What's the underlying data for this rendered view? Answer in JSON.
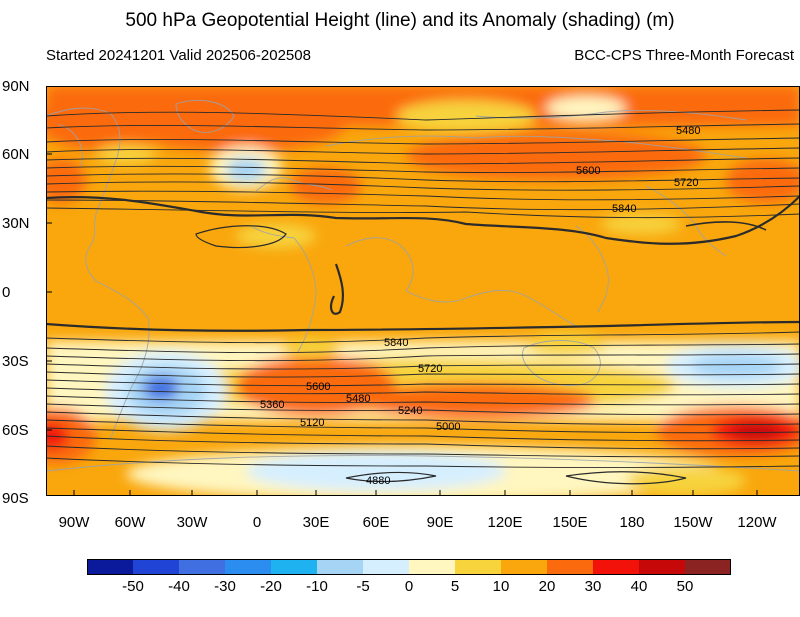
{
  "title": "500 hPa Geopotential Height (line) and its Anomaly (shading) (m)",
  "subtitle_left": "Started 20241201  Valid 202506-202508",
  "subtitle_right": "BCC-CPS Three-Month Forecast",
  "lat_labels": [
    "90N",
    "60N",
    "30N",
    "0",
    "30S",
    "60S",
    "90S"
  ],
  "lon_labels": [
    "90W",
    "60W",
    "30W",
    "0",
    "30E",
    "60E",
    "90E",
    "120E",
    "150E",
    "180",
    "150W",
    "120W"
  ],
  "colorbar": {
    "labels": [
      "-50",
      "-40",
      "-30",
      "-20",
      "-10",
      "-5",
      "0",
      "5",
      "10",
      "20",
      "30",
      "40",
      "50"
    ],
    "colors": [
      "#0a1a9a",
      "#1f44d6",
      "#3f6fe0",
      "#2b8df0",
      "#1eb2f0",
      "#a6d4f5",
      "#d6efff",
      "#fff6c0",
      "#f7d33c",
      "#f9a70d",
      "#fb6b0d",
      "#f2120a",
      "#c60808",
      "#8c2323"
    ]
  },
  "contour_labels": [
    "5480",
    "5600",
    "5720",
    "5840",
    "5840",
    "5720",
    "5600",
    "5480",
    "5360",
    "5240",
    "5120",
    "5000",
    "4880"
  ]
}
